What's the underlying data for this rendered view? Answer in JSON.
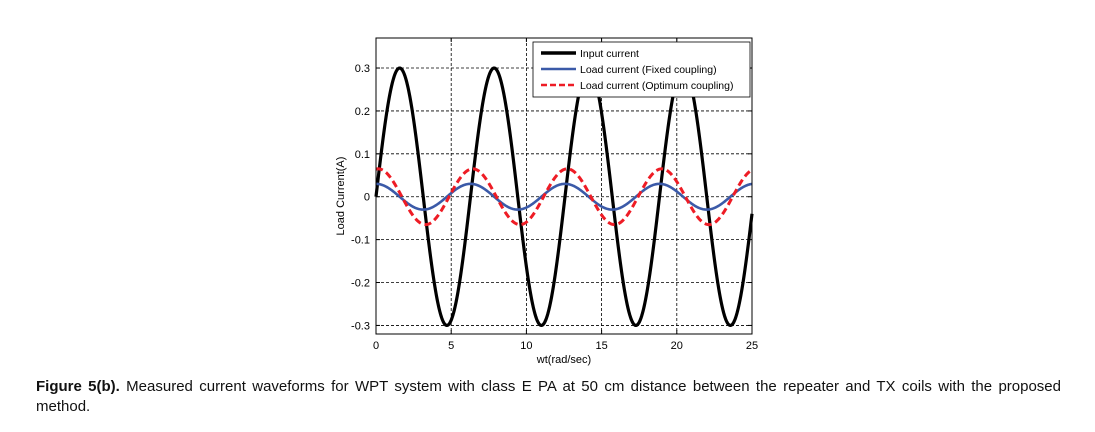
{
  "chart_data": {
    "type": "line",
    "title": "",
    "xlabel": "wt(rad/sec)",
    "ylabel": "Load Current(A)",
    "xlim": [
      0,
      25
    ],
    "ylim": [
      -0.32,
      0.37
    ],
    "xticks": [
      0,
      5,
      10,
      15,
      20,
      25
    ],
    "xtick_labels": [
      "0",
      "5",
      "10",
      "15",
      "20",
      "25"
    ],
    "yticks": [
      0.3,
      0.2,
      0.1,
      0,
      -0.1,
      -0.2,
      -0.3
    ],
    "ytick_labels": [
      "0.3",
      "0.2",
      "0.1",
      "0",
      "-0.1",
      "-0.2",
      "-0.3"
    ],
    "grid": true,
    "legend_position": "top-right",
    "series": [
      {
        "name": "Input current",
        "color": "#000000",
        "style": "solid",
        "amplitude": 0.3,
        "function": "0.3*sin(x)"
      },
      {
        "name": "Load current (Fixed coupling)",
        "color": "#3b5aa8",
        "style": "solid",
        "amplitude": 0.03,
        "function": "0.03*cos(x)"
      },
      {
        "name": "Load current (Optimum coupling)",
        "color": "#ee1c25",
        "style": "dashed",
        "amplitude": 0.065,
        "function": "0.065*cos(x-0.15)"
      }
    ]
  },
  "caption": {
    "label": "Figure 5(b).",
    "text": " Measured current waveforms for WPT system with class E PA at 50 cm distance between the repeater and TX coils with the proposed method."
  }
}
